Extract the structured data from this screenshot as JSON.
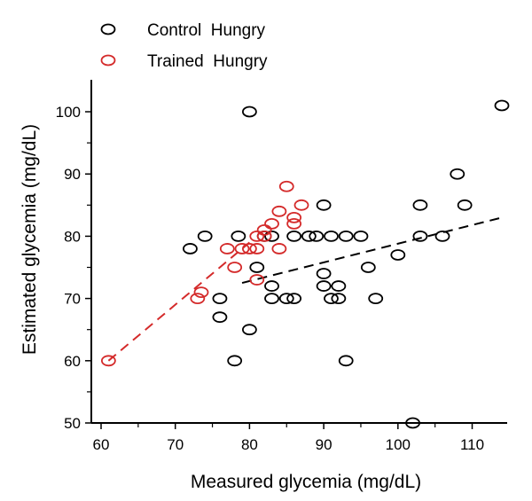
{
  "chart_data": {
    "type": "scatter",
    "xlabel": "Measured glycemia (mg/dL)",
    "ylabel": "Estimated glycemia (mg/dL)",
    "xlim": [
      60,
      115
    ],
    "ylim": [
      50,
      105
    ],
    "x_ticks": [
      60,
      70,
      80,
      90,
      100,
      110
    ],
    "y_ticks": [
      50,
      60,
      70,
      80,
      90,
      100
    ],
    "legend_position": "top-left",
    "grid": false,
    "series": [
      {
        "name": "Control  Hungry",
        "color": "#000000",
        "points": [
          [
            72,
            78
          ],
          [
            74,
            80
          ],
          [
            76,
            70
          ],
          [
            76,
            67
          ],
          [
            78,
            60
          ],
          [
            78.5,
            80
          ],
          [
            80,
            100
          ],
          [
            80,
            65
          ],
          [
            81,
            75
          ],
          [
            82,
            80
          ],
          [
            83,
            80
          ],
          [
            83,
            72
          ],
          [
            83,
            70
          ],
          [
            85,
            70
          ],
          [
            86,
            70
          ],
          [
            86,
            80
          ],
          [
            88,
            80
          ],
          [
            89,
            80
          ],
          [
            90,
            85
          ],
          [
            90,
            74
          ],
          [
            90,
            72
          ],
          [
            91,
            70
          ],
          [
            91,
            80
          ],
          [
            92,
            72
          ],
          [
            92,
            70
          ],
          [
            93,
            80
          ],
          [
            93,
            60
          ],
          [
            95,
            80
          ],
          [
            96,
            75
          ],
          [
            97,
            70
          ],
          [
            100,
            77
          ],
          [
            102,
            50
          ],
          [
            103,
            85
          ],
          [
            103,
            80
          ],
          [
            106,
            80
          ],
          [
            108,
            90
          ],
          [
            109,
            85
          ],
          [
            114,
            101
          ]
        ],
        "trend": {
          "x": [
            79,
            114
          ],
          "y": [
            72.5,
            83
          ]
        }
      },
      {
        "name": "Trained  Hungry",
        "color": "#d42a2a",
        "points": [
          [
            61,
            60
          ],
          [
            73,
            70
          ],
          [
            73.5,
            71
          ],
          [
            77,
            78
          ],
          [
            78,
            75
          ],
          [
            79,
            78
          ],
          [
            80,
            78
          ],
          [
            81,
            78
          ],
          [
            81,
            80
          ],
          [
            81,
            73
          ],
          [
            82,
            80
          ],
          [
            82,
            81
          ],
          [
            83,
            82
          ],
          [
            84,
            84
          ],
          [
            84,
            78
          ],
          [
            85,
            88
          ],
          [
            86,
            83
          ],
          [
            86,
            82
          ],
          [
            87,
            85
          ]
        ],
        "trend": {
          "x": [
            61,
            80
          ],
          "y": [
            60,
            79
          ]
        }
      }
    ]
  }
}
